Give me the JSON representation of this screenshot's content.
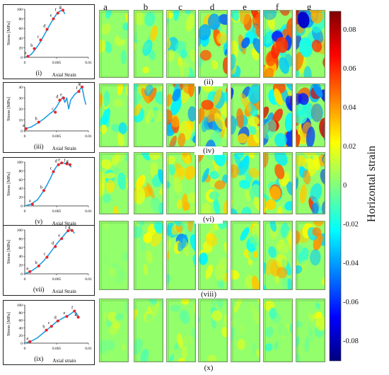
{
  "column_letters": [
    "a",
    "b",
    "c",
    "d",
    "e",
    "f",
    "g"
  ],
  "colorbar": {
    "label": "Horizontal strain",
    "ticks": [
      "0.08",
      "0.06",
      "0.04",
      "0.02",
      "0",
      "-0.02",
      "-0.04",
      "-0.06",
      "-0.08"
    ],
    "tick_values": [
      0.08,
      0.06,
      0.04,
      0.02,
      0,
      -0.02,
      -0.04,
      -0.06,
      -0.08
    ],
    "range": [
      -0.09,
      0.09
    ],
    "colormap": [
      "#00007f",
      "#0000ff",
      "#007fff",
      "#00ffff",
      "#7fff7f",
      "#ffff00",
      "#ff7f00",
      "#ff0000",
      "#7f0000"
    ]
  },
  "chart_data": [
    {
      "type": "line",
      "panel_label": "(i)",
      "xlabel": "Axial Strain",
      "ylabel": "Stress [MPa]",
      "xlim": [
        0,
        0.01
      ],
      "ylim": [
        0,
        100
      ],
      "x_ticks": [
        "0",
        "0.005",
        "0.01"
      ],
      "y_ticks": [
        "0",
        "20",
        "40",
        "60",
        "80",
        "100"
      ],
      "curve": [
        [
          0,
          0
        ],
        [
          0.0005,
          2
        ],
        [
          0.001,
          6
        ],
        [
          0.0015,
          14
        ],
        [
          0.002,
          23
        ],
        [
          0.0025,
          33
        ],
        [
          0.003,
          45
        ],
        [
          0.0035,
          57
        ],
        [
          0.004,
          69
        ],
        [
          0.0045,
          80
        ],
        [
          0.005,
          90
        ],
        [
          0.0055,
          96
        ],
        [
          0.006,
          98
        ],
        [
          0.0063,
          90
        ]
      ],
      "points": [
        {
          "label": "a",
          "x": 0.0005,
          "y": 2
        },
        {
          "label": "b",
          "x": 0.0015,
          "y": 18
        },
        {
          "label": "c",
          "x": 0.0025,
          "y": 36
        },
        {
          "label": "d",
          "x": 0.0035,
          "y": 58
        },
        {
          "label": "e",
          "x": 0.0045,
          "y": 80
        },
        {
          "label": "f",
          "x": 0.0052,
          "y": 92
        },
        {
          "label": "g",
          "x": 0.006,
          "y": 98
        }
      ]
    },
    {
      "type": "line",
      "panel_label": "(iii)",
      "xlabel": "Axial Strain",
      "ylabel": "Stress [MPa]",
      "xlim": [
        0,
        0.01
      ],
      "ylim": [
        0,
        40
      ],
      "x_ticks": [
        "0",
        "0.005",
        "0.01"
      ],
      "y_ticks": [
        "0",
        "10",
        "20",
        "30",
        "40"
      ],
      "curve": [
        [
          0,
          2
        ],
        [
          0.001,
          3.5
        ],
        [
          0.002,
          7
        ],
        [
          0.003,
          11
        ],
        [
          0.004,
          16
        ],
        [
          0.0045,
          18
        ],
        [
          0.005,
          22
        ],
        [
          0.0055,
          27
        ],
        [
          0.006,
          31
        ],
        [
          0.0063,
          26
        ],
        [
          0.0066,
          30
        ],
        [
          0.0069,
          20
        ],
        [
          0.0072,
          28
        ],
        [
          0.0078,
          33
        ],
        [
          0.0084,
          36
        ],
        [
          0.009,
          40
        ],
        [
          0.0093,
          31
        ],
        [
          0.0096,
          24
        ]
      ],
      "points": [
        {
          "label": "a",
          "x": 0.0002,
          "y": 2
        },
        {
          "label": "b",
          "x": 0.0022,
          "y": 8
        },
        {
          "label": "c",
          "x": 0.0048,
          "y": 17
        },
        {
          "label": "d",
          "x": 0.0055,
          "y": 28
        },
        {
          "label": "e",
          "x": 0.0061,
          "y": 30
        },
        {
          "label": "f",
          "x": 0.0085,
          "y": 36
        },
        {
          "label": "g",
          "x": 0.009,
          "y": 40
        }
      ]
    },
    {
      "type": "line",
      "panel_label": "(v)",
      "xlabel": "Axial Strain",
      "ylabel": "Stress [MPa]",
      "xlim": [
        0,
        0.01
      ],
      "ylim": [
        0,
        100
      ],
      "x_ticks": [
        "0",
        "0.005",
        "0.01"
      ],
      "y_ticks": [
        "0",
        "20",
        "40",
        "60",
        "80",
        "100"
      ],
      "curve": [
        [
          0,
          0
        ],
        [
          0.001,
          4
        ],
        [
          0.002,
          14
        ],
        [
          0.003,
          35
        ],
        [
          0.0035,
          48
        ],
        [
          0.004,
          62
        ],
        [
          0.0045,
          78
        ],
        [
          0.005,
          90
        ],
        [
          0.0055,
          96
        ],
        [
          0.006,
          98
        ],
        [
          0.0065,
          96
        ],
        [
          0.007,
          94
        ],
        [
          0.0073,
          88
        ]
      ],
      "points": [
        {
          "label": "a",
          "x": 0.0012,
          "y": 4
        },
        {
          "label": "b",
          "x": 0.003,
          "y": 35
        },
        {
          "label": "c",
          "x": 0.0045,
          "y": 78
        },
        {
          "label": "d",
          "x": 0.0053,
          "y": 94
        },
        {
          "label": "e",
          "x": 0.0058,
          "y": 98
        },
        {
          "label": "f",
          "x": 0.0066,
          "y": 96
        },
        {
          "label": "g",
          "x": 0.0071,
          "y": 94
        }
      ]
    },
    {
      "type": "line",
      "panel_label": "(vii)",
      "xlabel": "Axial Strain",
      "ylabel": "Stress [MPa]",
      "xlim": [
        0,
        0.01
      ],
      "ylim": [
        0,
        100
      ],
      "x_ticks": [
        "0",
        "0.005",
        "0.01"
      ],
      "y_ticks": [
        "0",
        "20",
        "40",
        "60",
        "80",
        "100"
      ],
      "curve": [
        [
          0,
          0
        ],
        [
          0.001,
          6
        ],
        [
          0.002,
          16
        ],
        [
          0.003,
          30
        ],
        [
          0.004,
          48
        ],
        [
          0.005,
          68
        ],
        [
          0.006,
          85
        ],
        [
          0.0065,
          94
        ],
        [
          0.007,
          100
        ],
        [
          0.0075,
          99
        ],
        [
          0.0078,
          92
        ]
      ],
      "points": [
        {
          "label": "a",
          "x": 0.0008,
          "y": 5
        },
        {
          "label": "b",
          "x": 0.0022,
          "y": 18
        },
        {
          "label": "c",
          "x": 0.0035,
          "y": 38
        },
        {
          "label": "d",
          "x": 0.0048,
          "y": 62
        },
        {
          "label": "e",
          "x": 0.0058,
          "y": 80
        },
        {
          "label": "f",
          "x": 0.0068,
          "y": 98
        },
        {
          "label": "g",
          "x": 0.0074,
          "y": 99
        }
      ]
    },
    {
      "type": "line",
      "panel_label": "(ix)",
      "xlabel": "Axial strain",
      "ylabel": "Stress [MPa]",
      "xlim": [
        0,
        0.01
      ],
      "ylim": [
        0,
        100
      ],
      "x_ticks": [
        "0",
        "0.005",
        "0.01"
      ],
      "y_ticks": [
        "0",
        "20",
        "40",
        "60",
        "80",
        "100"
      ],
      "curve": [
        [
          0,
          0
        ],
        [
          0.001,
          5
        ],
        [
          0.002,
          14
        ],
        [
          0.003,
          28
        ],
        [
          0.004,
          42
        ],
        [
          0.005,
          56
        ],
        [
          0.006,
          66
        ],
        [
          0.007,
          74
        ],
        [
          0.0078,
          84
        ],
        [
          0.0082,
          76
        ],
        [
          0.0085,
          68
        ]
      ],
      "points": [
        {
          "label": "a",
          "x": 0.0008,
          "y": 4
        },
        {
          "label": "b",
          "x": 0.0034,
          "y": 34
        },
        {
          "label": "c",
          "x": 0.0042,
          "y": 44
        },
        {
          "label": "d",
          "x": 0.0052,
          "y": 58
        },
        {
          "label": "e",
          "x": 0.0066,
          "y": 70
        },
        {
          "label": "f",
          "x": 0.0078,
          "y": 84
        },
        {
          "label": "g",
          "x": 0.0084,
          "y": 68
        }
      ]
    }
  ],
  "map_rows": [
    {
      "label": "(ii)"
    },
    {
      "label": "(iv)"
    },
    {
      "label": "(vi)"
    },
    {
      "label": "(viii)"
    },
    {
      "label": "(x)"
    }
  ]
}
